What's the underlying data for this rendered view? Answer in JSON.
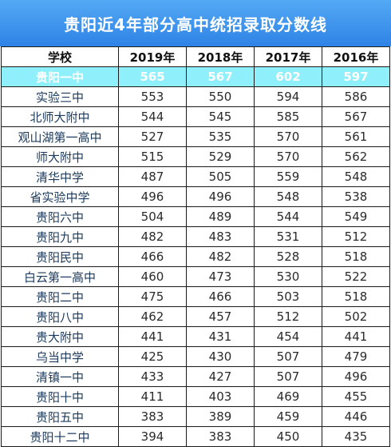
{
  "title": "贵阳近4年部分高中统招录取分数线",
  "headers": [
    "学校",
    "2019年",
    "2018年",
    "2017年",
    "2016年"
  ],
  "rows": [
    {
      "school": "贵阳一中",
      "scores": [
        "565",
        "567",
        "602",
        "597"
      ],
      "highlight": true
    },
    {
      "school": "实验三中",
      "scores": [
        "553",
        "550",
        "594",
        "586"
      ]
    },
    {
      "school": "北师大附中",
      "scores": [
        "544",
        "545",
        "585",
        "567"
      ]
    },
    {
      "school": "观山湖第一高中",
      "scores": [
        "527",
        "535",
        "570",
        "561"
      ]
    },
    {
      "school": "师大附中",
      "scores": [
        "515",
        "529",
        "570",
        "562"
      ]
    },
    {
      "school": "清华中学",
      "scores": [
        "487",
        "505",
        "559",
        "548"
      ]
    },
    {
      "school": "省实验中学",
      "scores": [
        "496",
        "496",
        "548",
        "538"
      ]
    },
    {
      "school": "贵阳六中",
      "scores": [
        "504",
        "489",
        "544",
        "549"
      ]
    },
    {
      "school": "贵阳九中",
      "scores": [
        "482",
        "483",
        "531",
        "512"
      ]
    },
    {
      "school": "贵阳民中",
      "scores": [
        "466",
        "482",
        "528",
        "518"
      ]
    },
    {
      "school": "白云第一高中",
      "scores": [
        "460",
        "473",
        "530",
        "522"
      ]
    },
    {
      "school": "贵阳二中",
      "scores": [
        "475",
        "466",
        "503",
        "518"
      ]
    },
    {
      "school": "贵阳八中",
      "scores": [
        "462",
        "457",
        "512",
        "502"
      ]
    },
    {
      "school": "贵大附中",
      "scores": [
        "441",
        "431",
        "454",
        "441"
      ]
    },
    {
      "school": "乌当中学",
      "scores": [
        "425",
        "430",
        "507",
        "479"
      ]
    },
    {
      "school": "清镇一中",
      "scores": [
        "433",
        "427",
        "507",
        "496"
      ]
    },
    {
      "school": "贵阳十中",
      "scores": [
        "411",
        "403",
        "469",
        "455"
      ]
    },
    {
      "school": "贵阳五中",
      "scores": [
        "383",
        "389",
        "459",
        "446"
      ]
    },
    {
      "school": "贵阳十二中",
      "scores": [
        "394",
        "383",
        "450",
        "435"
      ]
    }
  ],
  "colors": {
    "title_bg": "#3a90ea",
    "highlight_row": "#8ff0fb"
  }
}
